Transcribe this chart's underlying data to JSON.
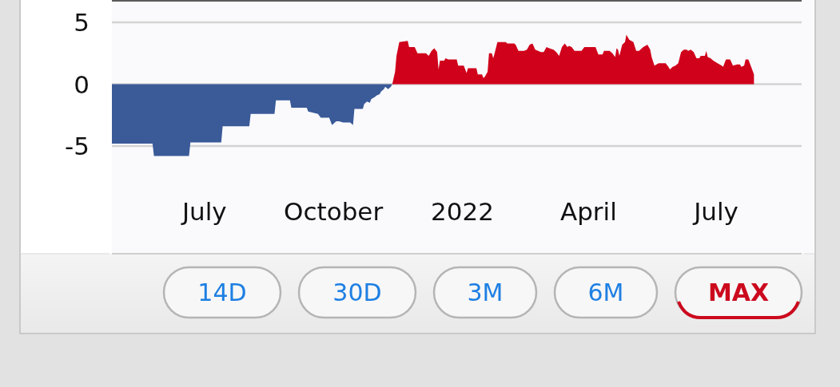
{
  "chart_data": {
    "type": "area",
    "xlim": [
      "2021-04-26",
      "2022-08-31"
    ],
    "xticks": [
      {
        "value": "2021-07-01",
        "label": "July"
      },
      {
        "value": "2021-10-01",
        "label": "October"
      },
      {
        "value": "2022-01-01",
        "label": "2022"
      },
      {
        "value": "2022-04-01",
        "label": "April"
      },
      {
        "value": "2022-07-01",
        "label": "July"
      }
    ],
    "ylim": [
      -13.7,
      6.7
    ],
    "yticks": [
      -5,
      0,
      5
    ],
    "grid": "y",
    "series": [
      {
        "color": "#3a5a98",
        "x": [
          "2021-04-26",
          "2021-05-25",
          "2021-05-26",
          "2021-06-20",
          "2021-06-21",
          "2021-07-13",
          "2021-07-14",
          "2021-08-02",
          "2021-08-03",
          "2021-08-20",
          "2021-08-21",
          "2021-08-31",
          "2021-09-01",
          "2021-09-12",
          "2021-09-13",
          "2021-09-20",
          "2021-09-22",
          "2021-09-28",
          "2021-09-30",
          "2021-10-03",
          "2021-10-05",
          "2021-10-08",
          "2021-10-13",
          "2021-10-15",
          "2021-10-16",
          "2021-10-22",
          "2021-10-23",
          "2021-10-25",
          "2021-10-27",
          "2021-10-28",
          "2021-10-31",
          "2021-11-01",
          "2021-11-03",
          "2021-11-04",
          "2021-11-06",
          "2021-11-07",
          "2021-11-09",
          "2021-11-11",
          "2021-11-12"
        ],
        "values": [
          -4.8,
          -4.8,
          -5.8,
          -5.8,
          -4.7,
          -4.7,
          -3.4,
          -3.4,
          -2.4,
          -2.4,
          -1.3,
          -1.3,
          -1.9,
          -1.9,
          -2.2,
          -2.4,
          -2.7,
          -2.7,
          -3.3,
          -3.0,
          -3.0,
          -3.1,
          -3.1,
          -3.3,
          -2.0,
          -2.0,
          -1.6,
          -1.4,
          -1.5,
          -1.2,
          -1.0,
          -0.9,
          -0.8,
          -0.6,
          -0.4,
          -0.2,
          -0.4,
          -0.2,
          0
        ]
      },
      {
        "color": "#d0021b",
        "x": [
          "2021-11-12",
          "2021-11-14",
          "2021-11-15",
          "2021-11-17",
          "2021-11-23",
          "2021-11-24",
          "2021-11-28",
          "2021-11-30",
          "2021-12-06",
          "2021-12-08",
          "2021-12-10",
          "2021-12-12",
          "2021-12-14",
          "2021-12-15",
          "2021-12-16",
          "2021-12-19",
          "2021-12-20",
          "2021-12-22",
          "2021-12-28",
          "2021-12-29",
          "2022-01-02",
          "2022-01-04",
          "2022-01-05",
          "2022-01-11",
          "2022-01-12",
          "2022-01-15",
          "2022-01-16",
          "2022-01-17",
          "2022-01-19",
          "2022-01-20",
          "2022-01-22",
          "2022-01-23",
          "2022-01-24",
          "2022-01-26",
          "2022-02-01",
          "2022-02-02",
          "2022-02-05",
          "2022-02-07",
          "2022-02-08",
          "2022-02-10",
          "2022-02-14",
          "2022-02-16",
          "2022-02-18",
          "2022-02-20",
          "2022-02-22",
          "2022-02-26",
          "2022-02-28",
          "2022-03-02",
          "2022-03-04",
          "2022-03-07",
          "2022-03-09",
          "2022-03-11",
          "2022-03-13",
          "2022-03-15",
          "2022-03-17",
          "2022-03-18",
          "2022-03-20",
          "2022-03-22",
          "2022-03-27",
          "2022-03-29",
          "2022-04-06",
          "2022-04-08",
          "2022-04-11",
          "2022-04-12",
          "2022-04-16",
          "2022-04-18",
          "2022-04-20",
          "2022-04-21",
          "2022-04-22",
          "2022-04-23",
          "2022-04-25",
          "2022-04-27",
          "2022-04-28",
          "2022-04-30",
          "2022-05-03",
          "2022-05-05",
          "2022-05-07",
          "2022-05-10",
          "2022-05-13",
          "2022-05-15",
          "2022-05-16",
          "2022-05-18",
          "2022-05-21",
          "2022-05-26",
          "2022-05-28",
          "2022-05-29",
          "2022-05-31",
          "2022-06-02",
          "2022-06-04",
          "2022-06-06",
          "2022-06-08",
          "2022-06-10",
          "2022-06-11",
          "2022-06-13",
          "2022-06-15",
          "2022-06-17",
          "2022-06-19",
          "2022-06-20",
          "2022-06-23",
          "2022-06-24",
          "2022-06-25",
          "2022-06-27",
          "2022-06-29",
          "2022-07-02",
          "2022-07-05",
          "2022-07-06",
          "2022-07-08",
          "2022-07-11",
          "2022-07-13",
          "2022-07-16",
          "2022-07-18",
          "2022-07-19",
          "2022-07-21",
          "2022-07-22",
          "2022-07-24",
          "2022-07-26",
          "2022-07-28"
        ],
        "values": [
          0,
          1.0,
          2.3,
          3.4,
          3.5,
          3.0,
          3.0,
          2.5,
          2.5,
          2.3,
          2.7,
          2.9,
          2.6,
          1.2,
          1.9,
          1.9,
          2.1,
          2.0,
          2.0,
          1.5,
          1.5,
          0.9,
          1.3,
          1.3,
          0.8,
          0.8,
          0.5,
          0.6,
          1.0,
          2.5,
          2.5,
          2.1,
          2.5,
          3.4,
          3.4,
          3.3,
          3.3,
          3.3,
          3.2,
          2.7,
          2.7,
          2.8,
          3.2,
          3.3,
          2.8,
          2.6,
          2.6,
          3.0,
          2.9,
          2.8,
          2.6,
          2.3,
          3.0,
          3.3,
          3.0,
          3.1,
          3.0,
          2.7,
          2.7,
          3.0,
          3.0,
          2.4,
          2.4,
          2.7,
          2.7,
          2.5,
          2.2,
          2.9,
          2.8,
          2.3,
          3.2,
          3.4,
          4.0,
          3.6,
          3.4,
          2.7,
          2.7,
          3.0,
          3.2,
          2.8,
          2.2,
          1.5,
          1.7,
          1.7,
          1.4,
          1.2,
          1.4,
          1.5,
          1.7,
          2.6,
          2.8,
          2.8,
          2.7,
          2.8,
          2.6,
          2.1,
          2.1,
          2.3,
          2.3,
          2.7,
          2.2,
          2.1,
          1.9,
          1.7,
          1.5,
          1.4,
          2.0,
          2.0,
          1.5,
          1.6,
          1.6,
          1.4,
          1.5,
          2.0,
          2.0,
          1.4,
          0.8
        ]
      }
    ],
    "annotations": [
      "14D",
      "30D",
      "3M",
      "6M",
      "MAX"
    ]
  }
}
